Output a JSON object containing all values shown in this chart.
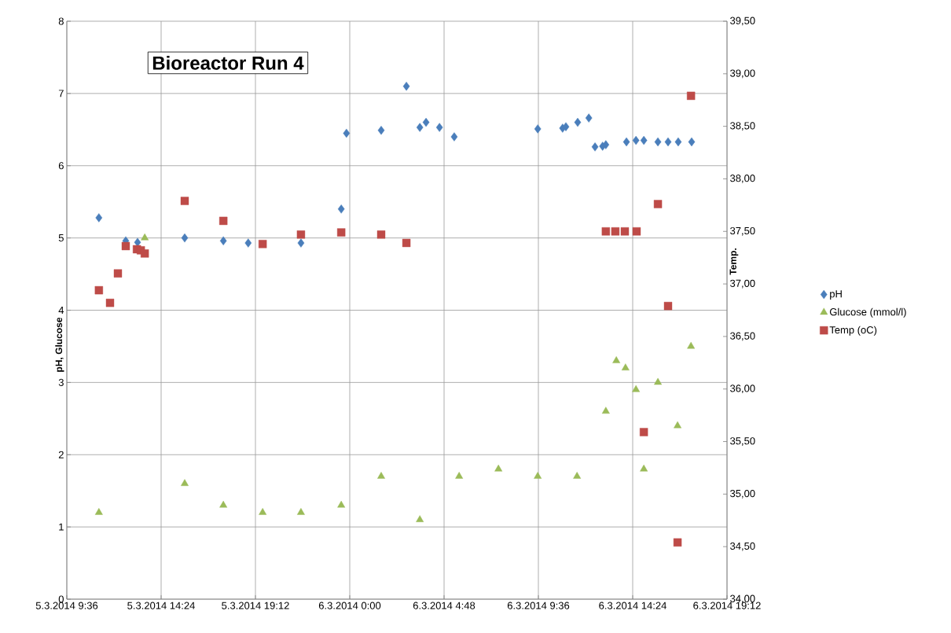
{
  "chart_data": {
    "type": "scatter",
    "title": "Bioreactor Run 4",
    "ylabel": "pH, Glucose",
    "y2label": "Temp.",
    "xlim": [
      "2014-03-05T09:36",
      "2014-03-06T19:12"
    ],
    "xticks": [
      {
        "value": "2014-03-05T09:36",
        "label": "5.3.2014 9:36"
      },
      {
        "value": "2014-03-05T14:24",
        "label": "5.3.2014 14:24"
      },
      {
        "value": "2014-03-05T19:12",
        "label": "5.3.2014 19:12"
      },
      {
        "value": "2014-03-06T00:00",
        "label": "6.3.2014 0:00"
      },
      {
        "value": "2014-03-06T04:48",
        "label": "6.3.2014 4:48"
      },
      {
        "value": "2014-03-06T09:36",
        "label": "6.3.2014 9:36"
      },
      {
        "value": "2014-03-06T14:24",
        "label": "6.3.2014 14:24"
      },
      {
        "value": "2014-03-06T19:12",
        "label": "6.3.2014 19:12"
      }
    ],
    "ylim": [
      0,
      8
    ],
    "yticks": [
      0,
      1,
      2,
      3,
      4,
      5,
      6,
      7,
      8
    ],
    "y2lim": [
      34,
      39.5
    ],
    "y2ticks": [
      {
        "value": 34,
        "label": "34,00"
      },
      {
        "value": 34.5,
        "label": "34,50"
      },
      {
        "value": 35,
        "label": "35,00"
      },
      {
        "value": 35.5,
        "label": "35,50"
      },
      {
        "value": 36,
        "label": "36,00"
      },
      {
        "value": 36.5,
        "label": "36,50"
      },
      {
        "value": 37,
        "label": "37,00"
      },
      {
        "value": 37.5,
        "label": "37,50"
      },
      {
        "value": 38,
        "label": "38,00"
      },
      {
        "value": 38.5,
        "label": "38,50"
      },
      {
        "value": 39,
        "label": "39,00"
      },
      {
        "value": 39.5,
        "label": "39,50"
      }
    ],
    "grid": true,
    "legend": "right",
    "series": [
      {
        "name": "pH",
        "color": "#4a7ebb",
        "marker": "diamond",
        "x": [
          "2014-03-05T11:14",
          "2014-03-05T12:36",
          "2014-03-05T13:12",
          "2014-03-05T15:36",
          "2014-03-05T17:34",
          "2014-03-05T18:50",
          "2014-03-05T21:31",
          "2014-03-05T23:34",
          "2014-03-05T23:50",
          "2014-03-06T01:36",
          "2014-03-06T02:53",
          "2014-03-06T03:34",
          "2014-03-06T03:53",
          "2014-03-06T04:34",
          "2014-03-06T05:19",
          "2014-03-06T09:34",
          "2014-03-06T10:50",
          "2014-03-06T11:00",
          "2014-03-06T11:36",
          "2014-03-06T12:10",
          "2014-03-06T12:29",
          "2014-03-06T12:52",
          "2014-03-06T13:02",
          "2014-03-06T14:05",
          "2014-03-06T14:34",
          "2014-03-06T14:58",
          "2014-03-06T15:41",
          "2014-03-06T16:12",
          "2014-03-06T16:43",
          "2014-03-06T17:24"
        ],
        "values": [
          5.28,
          4.96,
          4.94,
          5.0,
          4.96,
          4.93,
          4.93,
          5.4,
          6.45,
          6.49,
          7.1,
          6.53,
          6.6,
          6.53,
          6.4,
          6.51,
          6.52,
          6.54,
          6.6,
          6.66,
          6.26,
          6.27,
          6.29,
          6.33,
          6.35,
          6.35,
          6.33,
          6.33,
          6.33,
          6.33
        ]
      },
      {
        "name": "Glucose (mmol/l)",
        "color": "#9bbb59",
        "marker": "triangle",
        "x": [
          "2014-03-05T11:14",
          "2014-03-05T13:34",
          "2014-03-05T15:36",
          "2014-03-05T17:34",
          "2014-03-05T19:34",
          "2014-03-05T21:31",
          "2014-03-05T23:34",
          "2014-03-06T01:36",
          "2014-03-06T03:34",
          "2014-03-06T05:34",
          "2014-03-06T07:34",
          "2014-03-06T09:34",
          "2014-03-06T11:34",
          "2014-03-06T13:02",
          "2014-03-06T13:34",
          "2014-03-06T14:02",
          "2014-03-06T14:34",
          "2014-03-06T14:58",
          "2014-03-06T15:41",
          "2014-03-06T16:41",
          "2014-03-06T17:22"
        ],
        "values": [
          1.2,
          5.0,
          1.6,
          1.3,
          1.2,
          1.2,
          1.3,
          1.7,
          1.1,
          1.7,
          1.8,
          1.7,
          1.7,
          2.6,
          3.3,
          3.2,
          2.9,
          1.8,
          3.0,
          2.4,
          3.5
        ]
      },
      {
        "name": "Temp (oC)",
        "color": "#be4b48",
        "marker": "square",
        "axis": "y2",
        "x": [
          "2014-03-05T11:14",
          "2014-03-05T11:48",
          "2014-03-05T12:12",
          "2014-03-05T12:36",
          "2014-03-05T13:10",
          "2014-03-05T13:22",
          "2014-03-05T13:34",
          "2014-03-05T15:36",
          "2014-03-05T17:34",
          "2014-03-05T19:34",
          "2014-03-05T21:31",
          "2014-03-05T23:34",
          "2014-03-06T01:36",
          "2014-03-06T02:53",
          "2014-03-06T13:02",
          "2014-03-06T13:31",
          "2014-03-06T14:00",
          "2014-03-06T14:36",
          "2014-03-06T14:58",
          "2014-03-06T15:41",
          "2014-03-06T16:12",
          "2014-03-06T16:41",
          "2014-03-06T17:22"
        ],
        "values": [
          36.94,
          36.82,
          37.1,
          37.36,
          37.33,
          37.32,
          37.29,
          37.79,
          37.6,
          37.38,
          37.47,
          37.49,
          37.47,
          37.39,
          37.5,
          37.5,
          37.5,
          37.5,
          35.59,
          37.76,
          36.79,
          34.54,
          38.79
        ]
      }
    ]
  }
}
